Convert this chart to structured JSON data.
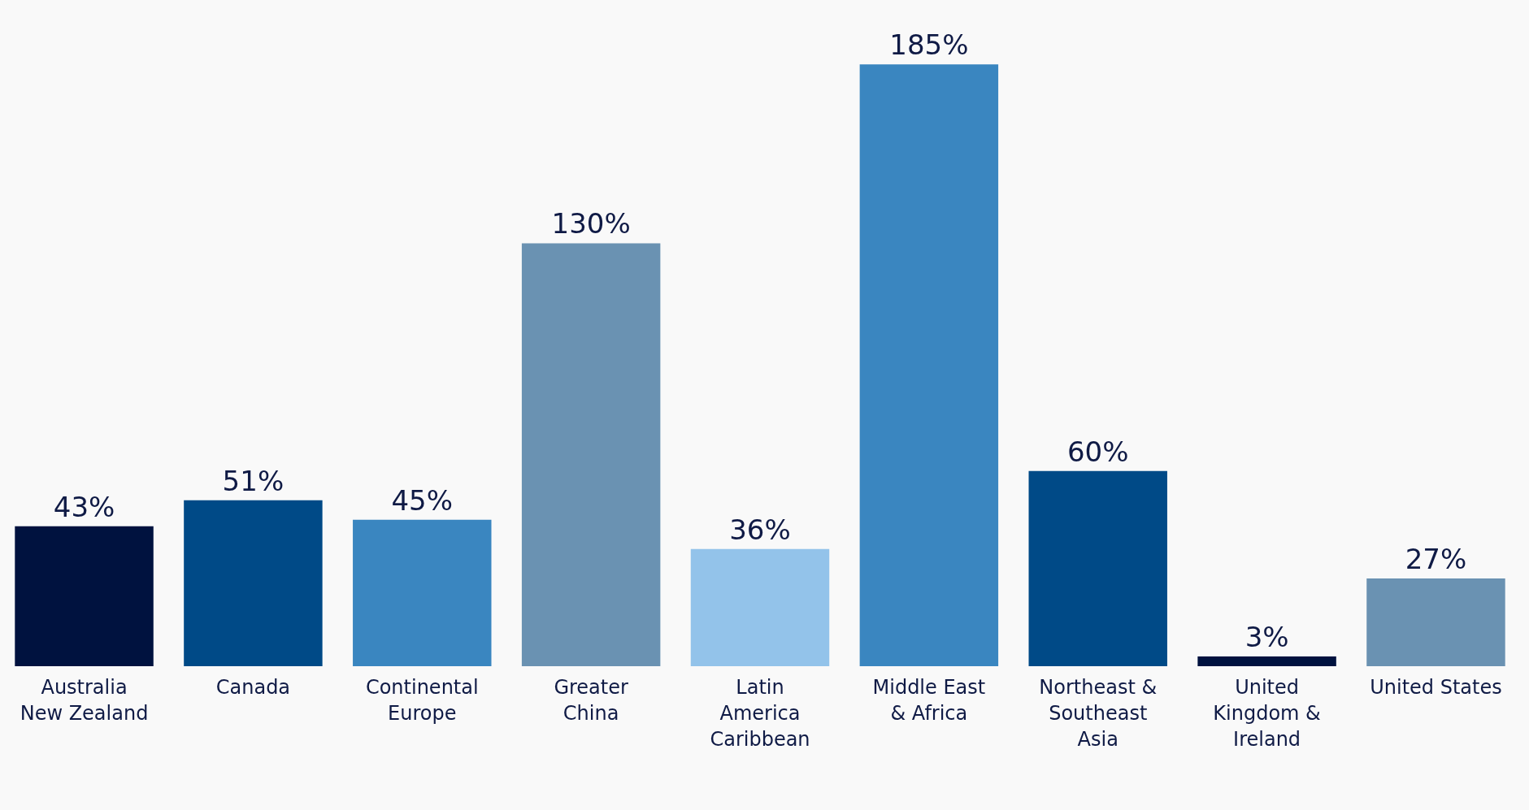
{
  "chart_data": {
    "type": "bar",
    "categories": [
      "Australia New Zealand",
      "Canada",
      "Continental Europe",
      "Greater China",
      "Latin America Caribbean",
      "Middle East & Africa",
      "Northeast & Southeast Asia",
      "United Kingdom & Ireland",
      "United States"
    ],
    "values": [
      43,
      51,
      45,
      130,
      36,
      185,
      60,
      3,
      27
    ],
    "value_labels": [
      "43%",
      "51%",
      "45%",
      "130%",
      "36%",
      "185%",
      "60%",
      "3%",
      "27%"
    ],
    "colors": [
      "#00123f",
      "#004a87",
      "#3a86c0",
      "#6a92b2",
      "#93c3ea",
      "#3a86c0",
      "#004a87",
      "#00123f",
      "#6a92b2"
    ]
  }
}
